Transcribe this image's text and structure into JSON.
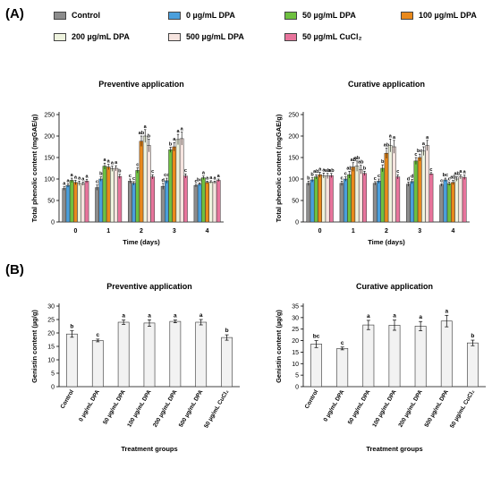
{
  "panel_labels": {
    "a": "(A)",
    "b": "(B)"
  },
  "legend": [
    {
      "label": "Control",
      "color": "#8c8c8c"
    },
    {
      "label": "0 µg/mL DPA",
      "color": "#4a9fdc"
    },
    {
      "label": "50 µg/mL DPA",
      "color": "#6ec040"
    },
    {
      "label": "100 µg/mL DPA",
      "color": "#e9891c"
    },
    {
      "label": "200 µg/mL DPA",
      "color": "#eef3de"
    },
    {
      "label": "500 µg/mL DPA",
      "color": "#f6e4df"
    },
    {
      "label": "50 µg/mL CuCl₂",
      "color": "#e8749c"
    }
  ],
  "chart_data": [
    {
      "type": "bar",
      "title": "Preventive application",
      "xlabel": "Time (days)",
      "ylabel": "Total phenolic content (mgGAE/g)",
      "ylim": [
        0,
        250
      ],
      "yticks": [
        "0",
        "50",
        "100",
        "150",
        "200",
        "250"
      ],
      "categories": [
        "0",
        "1",
        "2",
        "3",
        "4"
      ],
      "series": [
        {
          "name": "Control",
          "values": [
            78,
            80,
            95,
            83,
            85
          ],
          "errors": [
            4,
            6,
            5,
            7,
            3
          ],
          "letters": [
            "a",
            "c",
            "c",
            "d",
            "c"
          ]
        },
        {
          "name": "0 µg/mL DPA",
          "values": [
            85,
            100,
            90,
            96,
            88
          ],
          "errors": [
            4,
            5,
            4,
            6,
            3
          ],
          "letters": [
            "a",
            "b",
            "c",
            "cd",
            "bc"
          ]
        },
        {
          "name": "50 µg/mL DPA",
          "values": [
            97,
            130,
            120,
            168,
            103
          ],
          "errors": [
            5,
            7,
            6,
            6,
            4
          ],
          "letters": [
            "a",
            "a",
            "c",
            "b",
            "a"
          ]
        },
        {
          "name": "100 µg/mL DPA",
          "values": [
            92,
            128,
            188,
            175,
            92
          ],
          "errors": [
            5,
            6,
            12,
            10,
            3
          ],
          "letters": [
            "a",
            "a",
            "ab",
            "a",
            "a"
          ]
        },
        {
          "name": "200 µg/mL DPA",
          "values": [
            90,
            124,
            200,
            192,
            93
          ],
          "errors": [
            5,
            6,
            15,
            12,
            3
          ],
          "letters": [
            "a",
            "a",
            "a",
            "a",
            "a"
          ]
        },
        {
          "name": "500 µg/mL DPA",
          "values": [
            89,
            125,
            178,
            194,
            92
          ],
          "errors": [
            4,
            6,
            15,
            15,
            3
          ],
          "letters": [
            "a",
            "a",
            "b",
            "a",
            "a"
          ]
        },
        {
          "name": "50 µg/mL CuCl₂",
          "values": [
            95,
            106,
            105,
            107,
            97
          ],
          "errors": [
            4,
            5,
            5,
            5,
            3
          ],
          "letters": [
            "a",
            "b",
            "c",
            "c",
            "a"
          ]
        }
      ]
    },
    {
      "type": "bar",
      "title": "Curative application",
      "xlabel": "Time (days)",
      "ylabel": "Total phenolic content (mgGAE/g)",
      "ylim": [
        0,
        250
      ],
      "yticks": [
        "0",
        "50",
        "100",
        "150",
        "200",
        "250"
      ],
      "categories": [
        "0",
        "1",
        "2",
        "3",
        "4"
      ],
      "series": [
        {
          "name": "Control",
          "values": [
            90,
            90,
            90,
            88,
            86
          ],
          "errors": [
            5,
            5,
            4,
            5,
            3
          ],
          "letters": [
            "b",
            "c",
            "c",
            "d",
            "c"
          ]
        },
        {
          "name": "0 µg/mL DPA",
          "values": [
            98,
            100,
            95,
            94,
            98
          ],
          "errors": [
            5,
            5,
            5,
            5,
            4
          ],
          "letters": [
            "b",
            "c",
            "c",
            "d",
            "bc"
          ]
        },
        {
          "name": "50 µg/mL DPA",
          "values": [
            105,
            110,
            125,
            142,
            89
          ],
          "errors": [
            5,
            8,
            8,
            8,
            4
          ],
          "letters": [
            "ab",
            "ab",
            "b",
            "c",
            "c"
          ]
        },
        {
          "name": "100 µg/mL DPA",
          "values": [
            110,
            128,
            160,
            150,
            92
          ],
          "errors": [
            6,
            10,
            12,
            8,
            5
          ],
          "letters": [
            "a",
            "ab",
            "ab",
            "bc",
            "ab"
          ]
        },
        {
          "name": "200 µg/mL DPA",
          "values": [
            108,
            130,
            178,
            165,
            100
          ],
          "errors": [
            6,
            12,
            15,
            10,
            5
          ],
          "letters": [
            "a",
            "ab",
            "a",
            "a",
            "ab"
          ]
        },
        {
          "name": "500 µg/mL DPA",
          "values": [
            107,
            122,
            175,
            178,
            105
          ],
          "errors": [
            6,
            10,
            15,
            12,
            5
          ],
          "letters": [
            "ab",
            "ab",
            "a",
            "a",
            "a"
          ]
        },
        {
          "name": "50 µg/mL CuCl₂",
          "values": [
            108,
            113,
            105,
            112,
            104
          ],
          "errors": [
            5,
            5,
            5,
            3,
            5
          ],
          "letters": [
            "ab",
            "b",
            "c",
            "c",
            "a"
          ]
        }
      ]
    },
    {
      "type": "bar",
      "title": "Preventive application",
      "xlabel": "Treatment groups",
      "ylabel": "Genistin content (µg/g)",
      "ylim": [
        0,
        30
      ],
      "yticks": [
        "0",
        "5",
        "10",
        "15",
        "20",
        "25",
        "30"
      ],
      "categories": [
        "Control",
        "0 µg/mL DPA",
        "50 µg/mL DPA",
        "100 µg/mL DPA",
        "200 µg/mL DPA",
        "500 µg/mL DPA",
        "50 µg/mL CuCl₂"
      ],
      "values": [
        19.6,
        17.2,
        24.0,
        23.7,
        24.3,
        24.0,
        18.3
      ],
      "errors": [
        1.2,
        0.5,
        0.8,
        1.2,
        0.5,
        1.0,
        1.0
      ],
      "letters": [
        "b",
        "c",
        "a",
        "a",
        "a",
        "a",
        "b"
      ]
    },
    {
      "type": "bar",
      "title": "Curative application",
      "xlabel": "Treatment groups",
      "ylabel": "Genistin content (µg/g)",
      "ylim": [
        0,
        35
      ],
      "yticks": [
        "0",
        "5",
        "10",
        "15",
        "20",
        "25",
        "30",
        "35"
      ],
      "categories": [
        "Control",
        "0 µg/mL DPA",
        "50 µg/mL DPA",
        "100 µg/mL DPA",
        "200 µg/mL DPA",
        "500 µg/mL DPA",
        "50 µg/mL CuCl₂"
      ],
      "values": [
        18.5,
        16.6,
        26.8,
        26.7,
        26.3,
        28.5,
        19.0
      ],
      "errors": [
        1.5,
        0.6,
        2.0,
        2.2,
        2.0,
        2.5,
        1.2
      ],
      "letters": [
        "bc",
        "c",
        "a",
        "a",
        "a",
        "a",
        "b"
      ]
    }
  ]
}
